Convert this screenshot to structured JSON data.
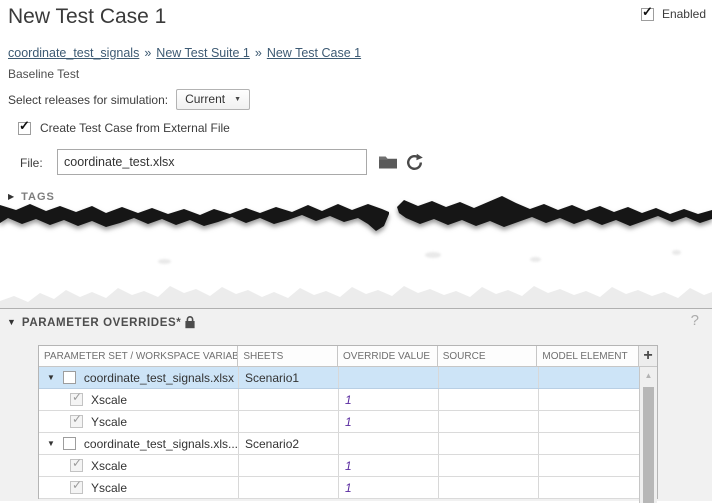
{
  "page": {
    "title": "New Test Case 1",
    "enabled_label": "Enabled",
    "enabled_checked": true
  },
  "breadcrumb": {
    "separator": "»",
    "items": [
      "coordinate_test_signals",
      "New Test Suite 1",
      "New Test Case 1"
    ]
  },
  "test_type": "Baseline Test",
  "simulation": {
    "label": "Select releases for simulation:",
    "selected_release": "Current"
  },
  "external_file": {
    "create_label": "Create Test Case from External File",
    "create_checked": true,
    "file_label": "File:",
    "file_value": "coordinate_test.xlsx"
  },
  "sections": {
    "tags": {
      "title": "TAGS",
      "collapsed": true
    },
    "parameter_overrides": {
      "title": "PARAMETER OVERRIDES*",
      "help_label": "?",
      "locked": true
    }
  },
  "table": {
    "columns": [
      "PARAMETER SET / WORKSPACE VARIABLE",
      "SHEETS",
      "OVERRIDE VALUE",
      "SOURCE",
      "MODEL ELEMENT"
    ],
    "add_button": "+",
    "rows": [
      {
        "type": "group",
        "selected": true,
        "expanded": true,
        "checked": false,
        "name": "coordinate_test_signals.xlsx",
        "sheets": "Scenario1",
        "override": "",
        "source": "",
        "model_element": ""
      },
      {
        "type": "child",
        "checked": true,
        "name": "Xscale",
        "sheets": "",
        "override": "1",
        "source": "",
        "model_element": ""
      },
      {
        "type": "child",
        "checked": true,
        "name": "Yscale",
        "sheets": "",
        "override": "1",
        "source": "",
        "model_element": ""
      },
      {
        "type": "group",
        "selected": false,
        "expanded": true,
        "checked": false,
        "name": "coordinate_test_signals.xls...",
        "sheets": "Scenario2",
        "override": "",
        "source": "",
        "model_element": ""
      },
      {
        "type": "child",
        "checked": true,
        "name": "Xscale",
        "sheets": "",
        "override": "1",
        "source": "",
        "model_element": ""
      },
      {
        "type": "child",
        "checked": true,
        "name": "Yscale",
        "sheets": "",
        "override": "1",
        "source": "",
        "model_element": ""
      }
    ]
  },
  "icons": {
    "check": "✓",
    "expanded_triangle": "▼",
    "collapsed_triangle": "▶",
    "dropdown_arrow": "▼",
    "scroll_up_arrow": "▲"
  },
  "colors": {
    "selection": "#cde4f7",
    "override_value": "#5a2ca0",
    "link": "#3d5a73",
    "fragment_background": "#f1f1f1"
  }
}
